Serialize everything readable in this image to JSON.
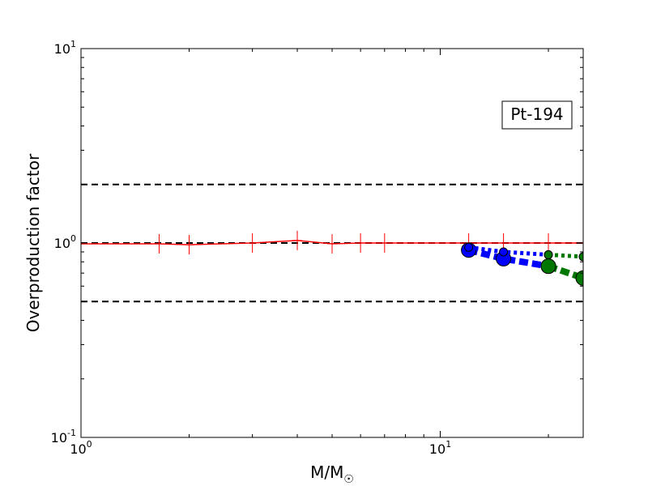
{
  "chart_data": {
    "type": "line",
    "xscale": "log",
    "yscale": "log",
    "xlim": [
      1,
      25
    ],
    "ylim": [
      0.1,
      10
    ],
    "xlabel": "M/M",
    "xlabel_sub": "☉",
    "ylabel": "Overproduction factor",
    "annotation": "Pt-194",
    "x_ticks": [
      {
        "value": 1,
        "base": "10",
        "exp": "0"
      },
      {
        "value": 10,
        "base": "10",
        "exp": "1"
      }
    ],
    "y_ticks": [
      {
        "value": 0.1,
        "base": "10",
        "exp": "-1"
      },
      {
        "value": 1,
        "base": "10",
        "exp": "0"
      },
      {
        "value": 10,
        "base": "10",
        "exp": "1"
      }
    ],
    "reference_lines": [
      0.5,
      1.0,
      2.0
    ],
    "series": [
      {
        "color": "#ff0000",
        "style": "solid",
        "marker": "plus",
        "x": [
          1,
          1.65,
          2,
          3,
          4,
          5,
          6,
          7,
          12,
          15,
          20,
          25
        ],
        "y": [
          0.99,
          0.99,
          0.98,
          1.0,
          1.03,
          0.99,
          1.0,
          1.0,
          1.0,
          1.0,
          1.0,
          1.0
        ]
      },
      {
        "color": "#0000ff",
        "style": "dashed-thick",
        "marker": "circle-large",
        "x": [
          12,
          15,
          20
        ],
        "y": [
          0.92,
          0.83,
          0.76
        ]
      },
      {
        "color": "#0000ff",
        "style": "dotted",
        "marker": "circle-small",
        "x": [
          12,
          15,
          20
        ],
        "y": [
          0.95,
          0.9,
          0.87
        ]
      },
      {
        "color": "#007700",
        "style": "dashed-thick",
        "marker": "circle-large",
        "x": [
          20,
          25
        ],
        "y": [
          0.76,
          0.66
        ]
      },
      {
        "color": "#007700",
        "style": "dotted",
        "marker": "circle-small",
        "x": [
          20,
          25
        ],
        "y": [
          0.87,
          0.85
        ]
      }
    ]
  }
}
